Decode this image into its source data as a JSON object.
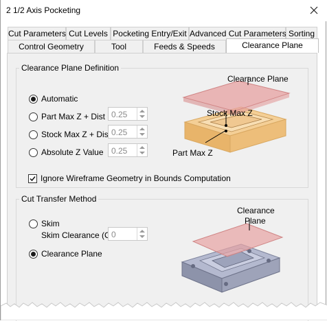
{
  "window": {
    "title": "2 1/2 Axis Pocketing"
  },
  "tabs_row1": [
    {
      "label": "Cut Parameters"
    },
    {
      "label": "Cut Levels"
    },
    {
      "label": "Pocketing Entry/Exit"
    },
    {
      "label": "Advanced Cut Parameters"
    },
    {
      "label": "Sorting"
    }
  ],
  "tabs_row2": [
    {
      "label": "Control Geometry"
    },
    {
      "label": "Tool"
    },
    {
      "label": "Feeds & Speeds"
    },
    {
      "label": "Clearance Plane",
      "active": true
    }
  ],
  "clearance_def": {
    "title": "Clearance Plane Definition",
    "options": [
      {
        "label": "Automatic",
        "selected": true
      },
      {
        "label": "Part Max Z + Dist",
        "value": "0.25"
      },
      {
        "label": "Stock Max Z + Dist",
        "value": "0.25"
      },
      {
        "label": "Absolute Z Value",
        "value": "0.25"
      }
    ],
    "ignore_wireframe": {
      "label": "Ignore Wireframe Geometry in Bounds Computation",
      "checked": true
    },
    "diagram_labels": {
      "clearance_plane": "Clearance Plane",
      "stock_max_z": "Stock Max Z",
      "part_max_z": "Part Max Z"
    }
  },
  "cut_transfer": {
    "title": "Cut Transfer Method",
    "skim": {
      "label": "Skim",
      "selected": false
    },
    "skim_clearance": {
      "label": "Skim Clearance (C)",
      "value": "0"
    },
    "clearance_plane": {
      "label": "Clearance Plane",
      "selected": true
    },
    "diagram_labels": {
      "clearance_line1": "Clearance",
      "clearance_line2": "Plane"
    }
  },
  "colors": {
    "plane": "#e8a0a0",
    "stock": "#f2c98a",
    "part": "#9aa0b8"
  },
  "icons": {
    "close": "close-icon"
  }
}
